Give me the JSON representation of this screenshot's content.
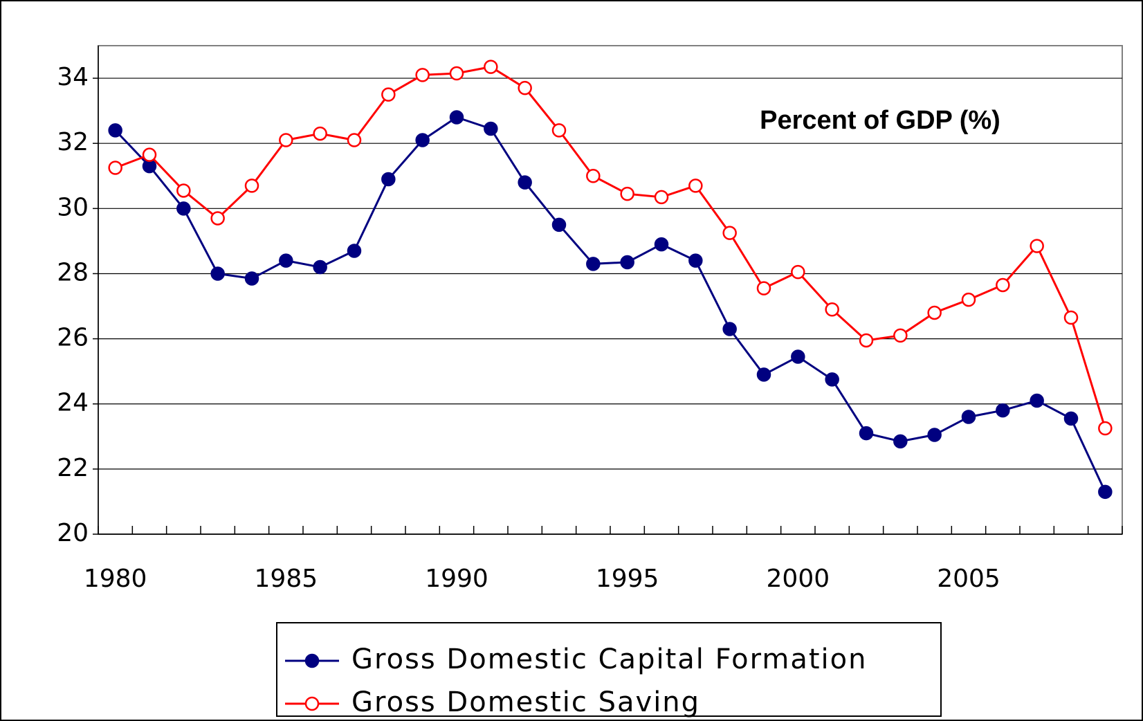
{
  "chart_data": {
    "type": "line",
    "annotation": "Percent of GDP (%)",
    "categories": [
      "1980",
      null,
      null,
      null,
      null,
      "1985",
      null,
      null,
      null,
      null,
      "1990",
      null,
      null,
      null,
      null,
      "1995",
      null,
      null,
      null,
      null,
      "2000",
      null,
      null,
      null,
      null,
      "2005",
      null,
      null,
      null,
      null
    ],
    "series": [
      {
        "name": "Gross Domestic Capital Formation",
        "color": "#000080",
        "marker": "filled",
        "values": [
          32.4,
          31.3,
          30.0,
          28.0,
          27.85,
          28.4,
          28.2,
          28.7,
          30.9,
          32.1,
          32.8,
          32.45,
          30.8,
          29.5,
          28.3,
          28.35,
          28.9,
          28.4,
          26.3,
          24.9,
          25.45,
          24.75,
          23.1,
          22.85,
          23.05,
          23.6,
          23.8,
          24.1,
          23.55,
          21.3
        ]
      },
      {
        "name": "Gross Domestic Saving",
        "color": "#ff0000",
        "marker": "open",
        "values": [
          31.25,
          31.65,
          30.55,
          29.7,
          30.7,
          32.1,
          32.3,
          32.1,
          33.5,
          34.1,
          34.15,
          34.35,
          33.7,
          32.4,
          31.0,
          30.45,
          30.35,
          30.7,
          29.25,
          27.55,
          28.05,
          26.9,
          25.95,
          26.1,
          26.8,
          27.2,
          27.65,
          28.85,
          26.65,
          23.25
        ]
      }
    ],
    "ylim": [
      20,
      35
    ],
    "yticks": [
      20,
      22,
      24,
      26,
      28,
      30,
      32,
      34
    ],
    "grid": true,
    "legend": "bottom"
  }
}
